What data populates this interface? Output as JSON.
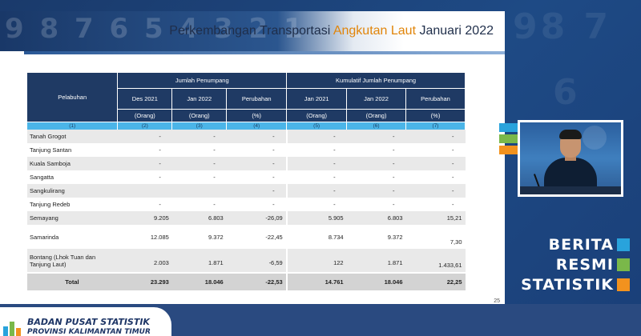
{
  "slide": {
    "title_pre": "Perkembangan Transportasi ",
    "title_highlight": "Angkutan Laut",
    "title_post": " Januari 2022",
    "page_number": "25"
  },
  "table": {
    "header_port": "Pelabuhan",
    "group1": "Jumlah Penumpang",
    "group2": "Kumulatif Jumlah Penumpang",
    "columns": [
      "Des 2021",
      "Jan 2022",
      "Perubahan",
      "Jan 2021",
      "Jan 2022",
      "Perubahan"
    ],
    "units": [
      "(Orang)",
      "(Orang)",
      "(%)",
      "(Orang)",
      "(Orang)",
      "(%)"
    ],
    "index": [
      "(1)",
      "(2)",
      "(3)",
      "(4)",
      "(5)",
      "(6)",
      "(7)"
    ],
    "rows": [
      {
        "name": "Tanah Grogot",
        "v": [
          "-",
          "-",
          "-",
          "-",
          "-",
          "-"
        ]
      },
      {
        "name": "Tanjung Santan",
        "v": [
          "-",
          "-",
          "-",
          "-",
          "-",
          "-"
        ]
      },
      {
        "name": "Kuala Samboja",
        "v": [
          "-",
          "-",
          "-",
          "-",
          "-",
          "-"
        ]
      },
      {
        "name": "Sangatta",
        "v": [
          "-",
          "-",
          "-",
          "-",
          "-",
          "-"
        ]
      },
      {
        "name": "Sangkulirang",
        "v": [
          "",
          "",
          "-",
          "-",
          "-",
          "-"
        ]
      },
      {
        "name": "Tanjung Redeb",
        "v": [
          "-",
          "-",
          "-",
          "-",
          "-",
          "-"
        ]
      },
      {
        "name": "Semayang",
        "v": [
          "9.205",
          "6.803",
          "-26,09",
          "5.905",
          "6.803",
          "15,21"
        ]
      },
      {
        "name": "Samarinda",
        "v": [
          "12.085",
          "9.372",
          "-22,45",
          "8.734",
          "9.372",
          "7,30"
        ]
      },
      {
        "name": "Bontang (Lhok Tuan dan Tanjung Laut)",
        "v": [
          "2.003",
          "1.871",
          "-6,59",
          "122",
          "1.871",
          "1.433,61"
        ]
      }
    ],
    "total": {
      "name": "Total",
      "v": [
        "23.293",
        "18.046",
        "-22,53",
        "14.761",
        "18.046",
        "22,25"
      ]
    }
  },
  "branding": {
    "brs_line1": "BERITA",
    "brs_line2": "RESMI",
    "brs_line3": "STATISTIK",
    "org_name": "BADAN PUSAT STATISTIK",
    "org_province": "PROVINSI KALIMANTAN TIMUR"
  },
  "colors": {
    "header_navy": "#1f3a64",
    "index_blue": "#4bb5e8",
    "title_orange": "#e1850a",
    "brs_blue": "#29a3dc",
    "brs_green": "#7ab84a",
    "brs_orange": "#f2921e"
  },
  "icons": {
    "presenter": "presenter-video",
    "logo": "bps-logo-icon"
  }
}
